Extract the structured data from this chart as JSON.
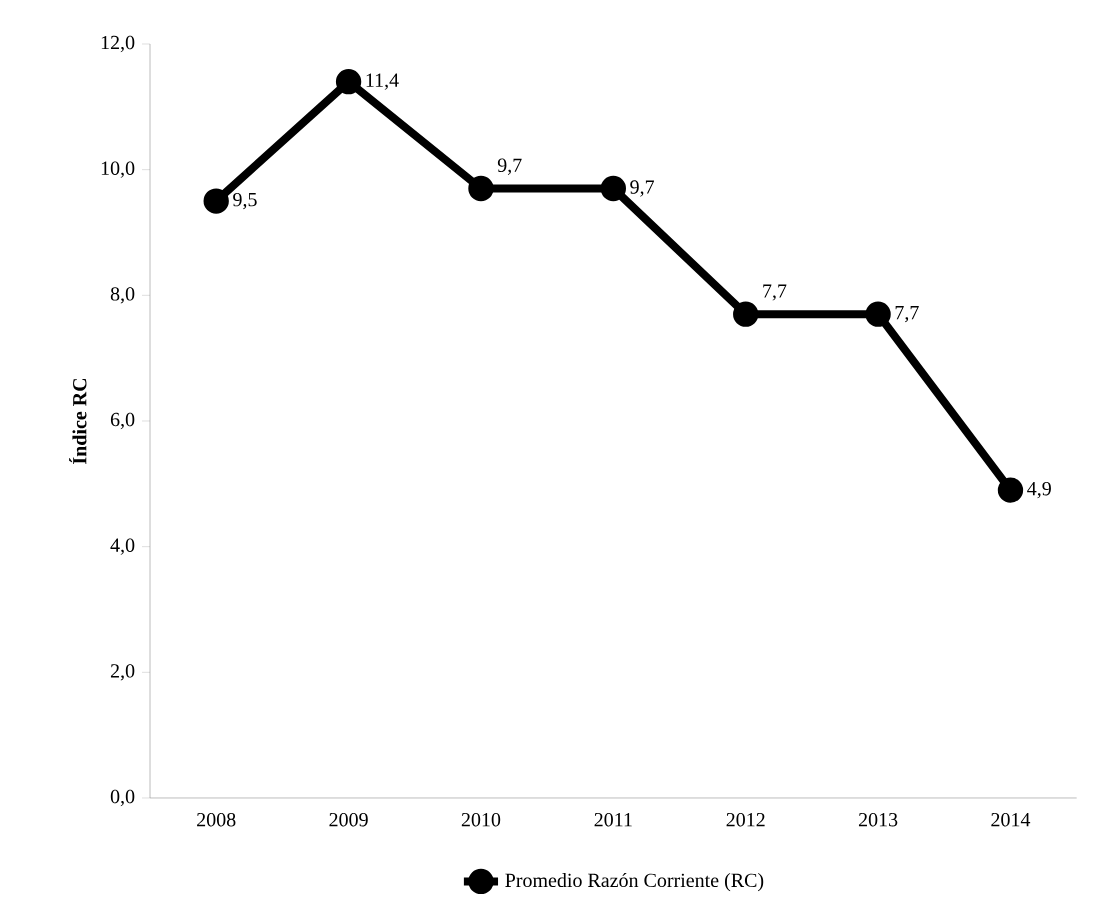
{
  "chart_data": {
    "type": "line",
    "ylabel": "Índice RC",
    "categories": [
      "2008",
      "2009",
      "2010",
      "2011",
      "2012",
      "2013",
      "2014"
    ],
    "series": [
      {
        "name": "Promedio Razón Corriente (RC)",
        "color": "#000000",
        "values": [
          9.5,
          11.4,
          9.7,
          9.7,
          7.7,
          7.7,
          4.9
        ],
        "value_labels": [
          "9,5",
          "11,4",
          "9,7",
          "9,7",
          "7,7",
          "7,7",
          "4,9"
        ]
      }
    ],
    "ylim": [
      0,
      12
    ],
    "yticks": [
      {
        "value": 0,
        "label": "0,0"
      },
      {
        "value": 2,
        "label": "2,0"
      },
      {
        "value": 4,
        "label": "4,0"
      },
      {
        "value": 6,
        "label": "6,0"
      },
      {
        "value": 8,
        "label": "8,0"
      },
      {
        "value": 10,
        "label": "10,0"
      },
      {
        "value": 12,
        "label": "12,0"
      }
    ],
    "grid": false,
    "legend": "bottom",
    "marker": "circle",
    "line_style": "solid"
  }
}
